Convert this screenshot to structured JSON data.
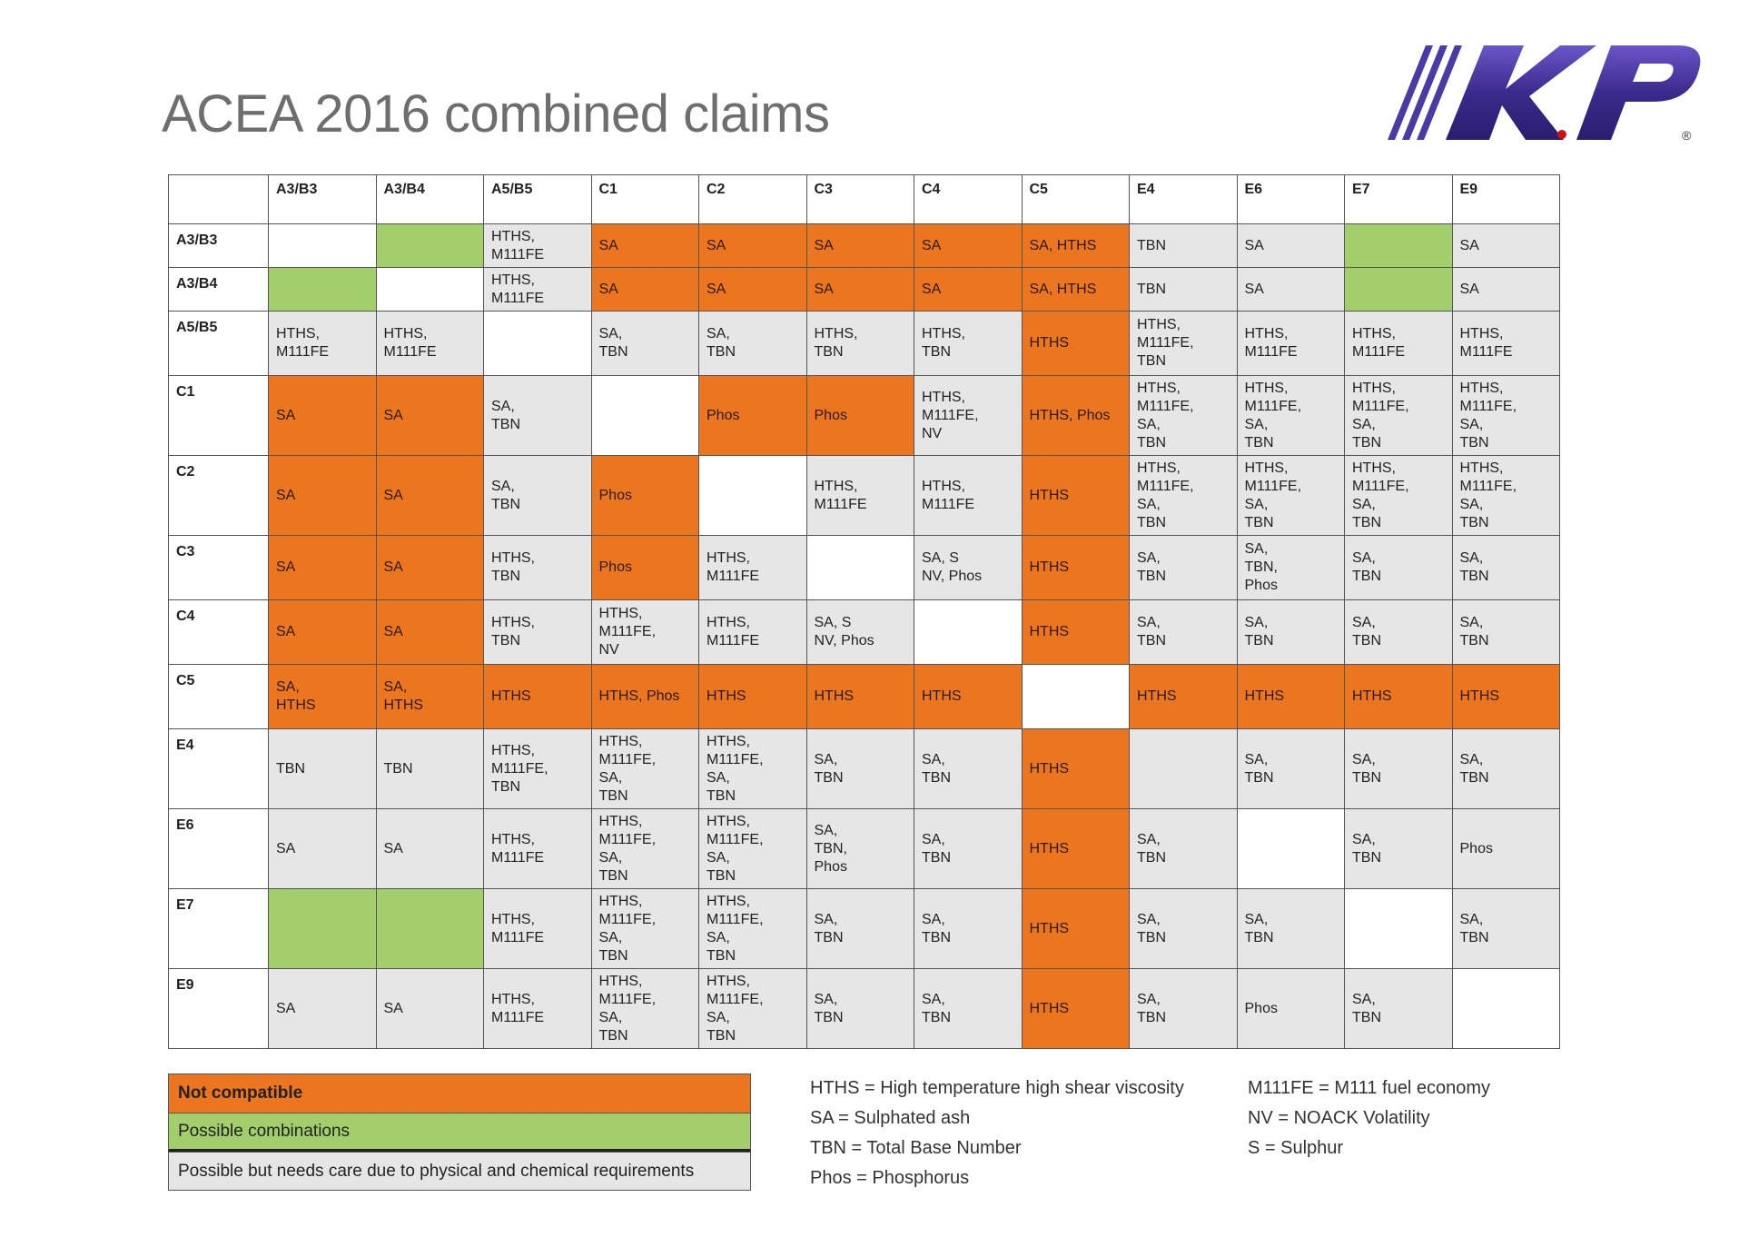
{
  "title": "ACEA 2016 combined claims",
  "logo": {
    "text": "K.P",
    "mark": "®"
  },
  "colors": {
    "not_compatible": "#eb761f",
    "possible": "#a2ce6b",
    "care": "#e6e6e6",
    "self": "#ffffff"
  },
  "columns": [
    "A3/B3",
    "A3/B4",
    "A5/B5",
    "C1",
    "C2",
    "C3",
    "C4",
    "C5",
    "E4",
    "E6",
    "E7",
    "E9"
  ],
  "rows": [
    {
      "label": "A3/B3",
      "cells": [
        {
          "t": "",
          "c": "w"
        },
        {
          "t": "",
          "c": "g"
        },
        {
          "t": "HTHS,\nM111FE",
          "c": "y"
        },
        {
          "t": "SA",
          "c": "r"
        },
        {
          "t": "SA",
          "c": "r"
        },
        {
          "t": "SA",
          "c": "r"
        },
        {
          "t": "SA",
          "c": "r"
        },
        {
          "t": "SA, HTHS",
          "c": "r"
        },
        {
          "t": "TBN",
          "c": "y"
        },
        {
          "t": "SA",
          "c": "y"
        },
        {
          "t": "",
          "c": "g"
        },
        {
          "t": "SA",
          "c": "y"
        }
      ]
    },
    {
      "label": "A3/B4",
      "cells": [
        {
          "t": "",
          "c": "g"
        },
        {
          "t": "",
          "c": "w"
        },
        {
          "t": "HTHS,\nM111FE",
          "c": "y"
        },
        {
          "t": "SA",
          "c": "r"
        },
        {
          "t": "SA",
          "c": "r"
        },
        {
          "t": "SA",
          "c": "r"
        },
        {
          "t": "SA",
          "c": "r"
        },
        {
          "t": "SA, HTHS",
          "c": "r"
        },
        {
          "t": "TBN",
          "c": "y"
        },
        {
          "t": "SA",
          "c": "y"
        },
        {
          "t": "",
          "c": "g"
        },
        {
          "t": "SA",
          "c": "y"
        }
      ]
    },
    {
      "label": "A5/B5",
      "cells": [
        {
          "t": "HTHS,\nM111FE",
          "c": "y"
        },
        {
          "t": "HTHS,\nM111FE",
          "c": "y"
        },
        {
          "t": "",
          "c": "w"
        },
        {
          "t": "SA,\nTBN",
          "c": "y"
        },
        {
          "t": "SA,\nTBN",
          "c": "y"
        },
        {
          "t": "HTHS,\nTBN",
          "c": "y"
        },
        {
          "t": "HTHS,\nTBN",
          "c": "y"
        },
        {
          "t": "HTHS",
          "c": "r"
        },
        {
          "t": "HTHS,\nM111FE,\nTBN",
          "c": "y"
        },
        {
          "t": "HTHS,\nM111FE",
          "c": "y"
        },
        {
          "t": "HTHS,\nM111FE",
          "c": "y"
        },
        {
          "t": "HTHS,\nM111FE",
          "c": "y"
        }
      ]
    },
    {
      "label": "C1",
      "cells": [
        {
          "t": "SA",
          "c": "r"
        },
        {
          "t": "SA",
          "c": "r"
        },
        {
          "t": "SA,\nTBN",
          "c": "y"
        },
        {
          "t": "",
          "c": "w"
        },
        {
          "t": "Phos",
          "c": "r"
        },
        {
          "t": "Phos",
          "c": "r"
        },
        {
          "t": "HTHS,\nM111FE,\nNV",
          "c": "y"
        },
        {
          "t": "HTHS, Phos",
          "c": "r"
        },
        {
          "t": "HTHS,\nM111FE,\nSA,\nTBN",
          "c": "y"
        },
        {
          "t": "HTHS,\nM111FE,\nSA,\nTBN",
          "c": "y"
        },
        {
          "t": "HTHS,\nM111FE,\nSA,\nTBN",
          "c": "y"
        },
        {
          "t": "HTHS,\nM111FE,\nSA,\nTBN",
          "c": "y"
        }
      ]
    },
    {
      "label": "C2",
      "cells": [
        {
          "t": "SA",
          "c": "r"
        },
        {
          "t": "SA",
          "c": "r"
        },
        {
          "t": "SA,\nTBN",
          "c": "y"
        },
        {
          "t": "Phos",
          "c": "r"
        },
        {
          "t": "",
          "c": "w"
        },
        {
          "t": "HTHS,\nM111FE",
          "c": "y"
        },
        {
          "t": "HTHS,\nM111FE",
          "c": "y"
        },
        {
          "t": "HTHS",
          "c": "r"
        },
        {
          "t": "HTHS,\nM111FE,\nSA,\nTBN",
          "c": "y"
        },
        {
          "t": "HTHS,\nM111FE,\nSA,\nTBN",
          "c": "y"
        },
        {
          "t": "HTHS,\nM111FE,\nSA,\nTBN",
          "c": "y"
        },
        {
          "t": "HTHS,\nM111FE,\nSA,\nTBN",
          "c": "y"
        }
      ]
    },
    {
      "label": "C3",
      "cells": [
        {
          "t": "SA",
          "c": "r"
        },
        {
          "t": "SA",
          "c": "r"
        },
        {
          "t": "HTHS,\nTBN",
          "c": "y"
        },
        {
          "t": "Phos",
          "c": "r"
        },
        {
          "t": "HTHS,\nM111FE",
          "c": "y"
        },
        {
          "t": "",
          "c": "w"
        },
        {
          "t": "SA, S\nNV, Phos",
          "c": "y"
        },
        {
          "t": "HTHS",
          "c": "r"
        },
        {
          "t": "SA,\nTBN",
          "c": "y"
        },
        {
          "t": "SA,\nTBN,\nPhos",
          "c": "y"
        },
        {
          "t": "SA,\nTBN",
          "c": "y"
        },
        {
          "t": "SA,\nTBN",
          "c": "y"
        }
      ]
    },
    {
      "label": "C4",
      "cells": [
        {
          "t": "SA",
          "c": "r"
        },
        {
          "t": "SA",
          "c": "r"
        },
        {
          "t": "HTHS,\nTBN",
          "c": "y"
        },
        {
          "t": "HTHS,\nM111FE,\nNV",
          "c": "y"
        },
        {
          "t": "HTHS,\nM111FE",
          "c": "y"
        },
        {
          "t": "SA, S\nNV, Phos",
          "c": "y"
        },
        {
          "t": "",
          "c": "w"
        },
        {
          "t": "HTHS",
          "c": "r"
        },
        {
          "t": "SA,\nTBN",
          "c": "y"
        },
        {
          "t": "SA,\nTBN",
          "c": "y"
        },
        {
          "t": "SA,\nTBN",
          "c": "y"
        },
        {
          "t": "SA,\nTBN",
          "c": "y"
        }
      ]
    },
    {
      "label": "C5",
      "cells": [
        {
          "t": "SA,\nHTHS",
          "c": "r"
        },
        {
          "t": "SA,\nHTHS",
          "c": "r"
        },
        {
          "t": "HTHS",
          "c": "r"
        },
        {
          "t": "HTHS, Phos",
          "c": "r"
        },
        {
          "t": "HTHS",
          "c": "r"
        },
        {
          "t": "HTHS",
          "c": "r"
        },
        {
          "t": "HTHS",
          "c": "r"
        },
        {
          "t": "",
          "c": "w"
        },
        {
          "t": "HTHS",
          "c": "r"
        },
        {
          "t": "HTHS",
          "c": "r"
        },
        {
          "t": "HTHS",
          "c": "r"
        },
        {
          "t": "HTHS",
          "c": "r"
        }
      ]
    },
    {
      "label": "E4",
      "cells": [
        {
          "t": "TBN",
          "c": "y"
        },
        {
          "t": "TBN",
          "c": "y"
        },
        {
          "t": "HTHS,\nM111FE,\nTBN",
          "c": "y"
        },
        {
          "t": "HTHS,\nM111FE,\nSA,\nTBN",
          "c": "y"
        },
        {
          "t": "HTHS,\nM111FE,\nSA,\nTBN",
          "c": "y"
        },
        {
          "t": "SA,\nTBN",
          "c": "y"
        },
        {
          "t": "SA,\nTBN",
          "c": "y"
        },
        {
          "t": "HTHS",
          "c": "r"
        },
        {
          "t": "",
          "c": "y"
        },
        {
          "t": "SA,\nTBN",
          "c": "y"
        },
        {
          "t": "SA,\nTBN",
          "c": "y"
        },
        {
          "t": "SA,\nTBN",
          "c": "y"
        }
      ]
    },
    {
      "label": "E6",
      "cells": [
        {
          "t": "SA",
          "c": "y"
        },
        {
          "t": "SA",
          "c": "y"
        },
        {
          "t": "HTHS,\nM111FE",
          "c": "y"
        },
        {
          "t": "HTHS,\nM111FE,\nSA,\nTBN",
          "c": "y"
        },
        {
          "t": "HTHS,\nM111FE,\nSA,\nTBN",
          "c": "y"
        },
        {
          "t": "SA,\nTBN,\nPhos",
          "c": "y"
        },
        {
          "t": "SA,\nTBN",
          "c": "y"
        },
        {
          "t": "HTHS",
          "c": "r"
        },
        {
          "t": "SA,\nTBN",
          "c": "y"
        },
        {
          "t": "",
          "c": "w"
        },
        {
          "t": "SA,\nTBN",
          "c": "y"
        },
        {
          "t": "Phos",
          "c": "y"
        }
      ]
    },
    {
      "label": "E7",
      "cells": [
        {
          "t": "",
          "c": "g"
        },
        {
          "t": "",
          "c": "g"
        },
        {
          "t": "HTHS,\nM111FE",
          "c": "y"
        },
        {
          "t": "HTHS,\nM111FE,\nSA,\nTBN",
          "c": "y"
        },
        {
          "t": "HTHS,\nM111FE,\nSA,\nTBN",
          "c": "y"
        },
        {
          "t": "SA,\nTBN",
          "c": "y"
        },
        {
          "t": "SA,\nTBN",
          "c": "y"
        },
        {
          "t": "HTHS",
          "c": "r"
        },
        {
          "t": "SA,\nTBN",
          "c": "y"
        },
        {
          "t": "SA,\nTBN",
          "c": "y"
        },
        {
          "t": "",
          "c": "w"
        },
        {
          "t": "SA,\nTBN",
          "c": "y"
        }
      ]
    },
    {
      "label": "E9",
      "cells": [
        {
          "t": "SA",
          "c": "y"
        },
        {
          "t": "SA",
          "c": "y"
        },
        {
          "t": "HTHS,\nM111FE",
          "c": "y"
        },
        {
          "t": "HTHS,\nM111FE,\nSA,\nTBN",
          "c": "y"
        },
        {
          "t": "HTHS,\nM111FE,\nSA,\nTBN",
          "c": "y"
        },
        {
          "t": "SA,\nTBN",
          "c": "y"
        },
        {
          "t": "SA,\nTBN",
          "c": "y"
        },
        {
          "t": "HTHS",
          "c": "r"
        },
        {
          "t": "SA,\nTBN",
          "c": "y"
        },
        {
          "t": "Phos",
          "c": "y"
        },
        {
          "t": "SA,\nTBN",
          "c": "y"
        },
        {
          "t": "",
          "c": "w"
        }
      ]
    }
  ],
  "legend": {
    "not_compatible": "Not compatible",
    "possible": "Possible combinations",
    "care": "Possible but needs care due to physical and chemical requirements"
  },
  "abbreviations": {
    "col1": [
      "HTHS = High temperature high shear viscosity",
      "SA = Sulphated ash",
      "TBN = Total Base Number",
      "Phos = Phosphorus"
    ],
    "col2": [
      "M111FE = M111 fuel economy",
      "NV = NOACK Volatility",
      "S = Sulphur"
    ]
  }
}
